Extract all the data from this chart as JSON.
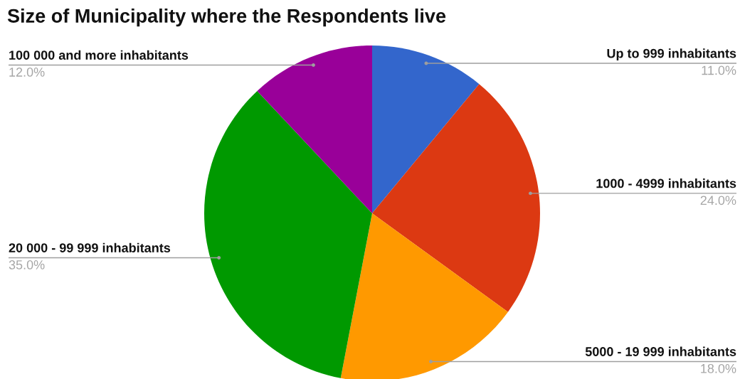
{
  "chart_data": {
    "type": "pie",
    "title": "Size of Municipality where the Respondents live",
    "categories": [
      "Up to 999 inhabitants",
      "1000 - 4999 inhabitants",
      "5000 - 19 999 inhabitants",
      "20 000 - 99 999 inhabitants",
      "100 000 and more inhabitants"
    ],
    "values": [
      11,
      24,
      18,
      35,
      12
    ],
    "colors": [
      "#3366cc",
      "#dc3912",
      "#ff9900",
      "#009900",
      "#990099"
    ],
    "value_labels": [
      "11.0%",
      "24.0%",
      "18.0%",
      "35.0%",
      "12.0%"
    ]
  }
}
